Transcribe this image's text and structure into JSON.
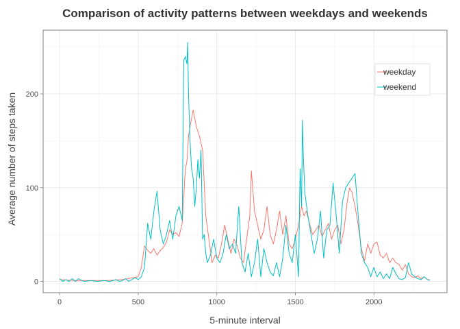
{
  "chart_data": {
    "type": "line",
    "title": "Comparison of activity patterns between weekdays and weekends",
    "xlabel": "5-minute interval",
    "ylabel": "Average number of steps taken",
    "xlim": [
      -105,
      2465
    ],
    "ylim": [
      -12,
      268
    ],
    "xticks": [
      0,
      500,
      1000,
      1500,
      2000
    ],
    "yticks": [
      0,
      100,
      200
    ],
    "grid": true,
    "legend_position": "top-right",
    "series": [
      {
        "name": "weekday",
        "color": "#F8766D",
        "x": [
          0,
          100,
          200,
          300,
          400,
          500,
          520,
          540,
          560,
          580,
          600,
          620,
          640,
          660,
          680,
          700,
          720,
          740,
          760,
          780,
          800,
          810,
          820,
          835,
          850,
          870,
          890,
          910,
          930,
          950,
          970,
          990,
          1010,
          1030,
          1050,
          1070,
          1090,
          1110,
          1130,
          1150,
          1170,
          1190,
          1210,
          1220,
          1240,
          1260,
          1280,
          1300,
          1320,
          1340,
          1360,
          1380,
          1400,
          1420,
          1440,
          1460,
          1480,
          1500,
          1520,
          1540,
          1555,
          1570,
          1590,
          1610,
          1630,
          1650,
          1670,
          1690,
          1710,
          1730,
          1750,
          1770,
          1790,
          1810,
          1830,
          1845,
          1860,
          1880,
          1900,
          1920,
          1940,
          1960,
          1980,
          2000,
          2020,
          2040,
          2060,
          2080,
          2100,
          2120,
          2140,
          2160,
          2180,
          2200,
          2220,
          2240,
          2260,
          2280,
          2300,
          2320,
          2340,
          2355
        ],
        "y": [
          2,
          1,
          1,
          1,
          2,
          5,
          15,
          38,
          33,
          30,
          35,
          28,
          33,
          36,
          42,
          55,
          50,
          52,
          48,
          62,
          120,
          128,
          155,
          170,
          183,
          165,
          155,
          140,
          70,
          45,
          20,
          28,
          25,
          40,
          60,
          45,
          30,
          45,
          38,
          25,
          20,
          45,
          70,
          118,
          75,
          60,
          45,
          55,
          80,
          50,
          40,
          55,
          75,
          50,
          70,
          40,
          35,
          45,
          60,
          80,
          70,
          75,
          62,
          50,
          55,
          60,
          48,
          55,
          62,
          45,
          55,
          60,
          40,
          55,
          85,
          100,
          95,
          80,
          60,
          35,
          22,
          40,
          30,
          40,
          42,
          28,
          25,
          30,
          20,
          25,
          20,
          18,
          12,
          18,
          8,
          5,
          4,
          6,
          3,
          5,
          2,
          2
        ]
      },
      {
        "name": "weekend",
        "color": "#00BFC4",
        "x": [
          0,
          20,
          40,
          60,
          80,
          100,
          120,
          140,
          160,
          200,
          240,
          280,
          320,
          360,
          380,
          400,
          420,
          440,
          460,
          480,
          500,
          520,
          540,
          560,
          580,
          600,
          620,
          640,
          660,
          680,
          700,
          720,
          740,
          760,
          780,
          790,
          800,
          810,
          815,
          820,
          830,
          840,
          850,
          860,
          870,
          880,
          890,
          900,
          910,
          920,
          930,
          940,
          960,
          980,
          1000,
          1020,
          1040,
          1060,
          1080,
          1100,
          1120,
          1140,
          1160,
          1180,
          1200,
          1220,
          1240,
          1260,
          1280,
          1300,
          1320,
          1340,
          1360,
          1380,
          1400,
          1420,
          1440,
          1460,
          1480,
          1500,
          1520,
          1530,
          1540,
          1545,
          1550,
          1560,
          1580,
          1600,
          1620,
          1640,
          1660,
          1680,
          1700,
          1720,
          1740,
          1760,
          1780,
          1800,
          1820,
          1840,
          1860,
          1880,
          1900,
          1920,
          1940,
          1960,
          1980,
          2000,
          2020,
          2040,
          2060,
          2080,
          2100,
          2120,
          2140,
          2160,
          2180,
          2200,
          2220,
          2240,
          2260,
          2280,
          2300,
          2320,
          2340,
          2355
        ],
        "y": [
          3,
          0,
          2,
          0,
          3,
          0,
          3,
          1,
          0,
          1,
          0,
          1,
          0,
          2,
          0,
          1,
          3,
          0,
          2,
          4,
          2,
          5,
          15,
          62,
          45,
          75,
          96,
          55,
          40,
          50,
          65,
          45,
          70,
          80,
          65,
          236,
          240,
          232,
          255,
          200,
          150,
          120,
          110,
          80,
          100,
          130,
          110,
          140,
          45,
          50,
          30,
          20,
          28,
          45,
          25,
          20,
          30,
          50,
          35,
          40,
          30,
          80,
          20,
          10,
          30,
          5,
          20,
          45,
          5,
          35,
          20,
          10,
          6,
          20,
          5,
          25,
          60,
          30,
          20,
          50,
          5,
          120,
          80,
          172,
          140,
          95,
          70,
          50,
          30,
          45,
          75,
          25,
          55,
          60,
          105,
          70,
          30,
          85,
          100,
          105,
          110,
          115,
          70,
          30,
          20,
          15,
          5,
          15,
          5,
          10,
          3,
          8,
          3,
          15,
          8,
          3,
          2,
          4,
          20,
          8,
          5,
          3,
          2,
          5,
          2,
          1
        ]
      }
    ]
  }
}
